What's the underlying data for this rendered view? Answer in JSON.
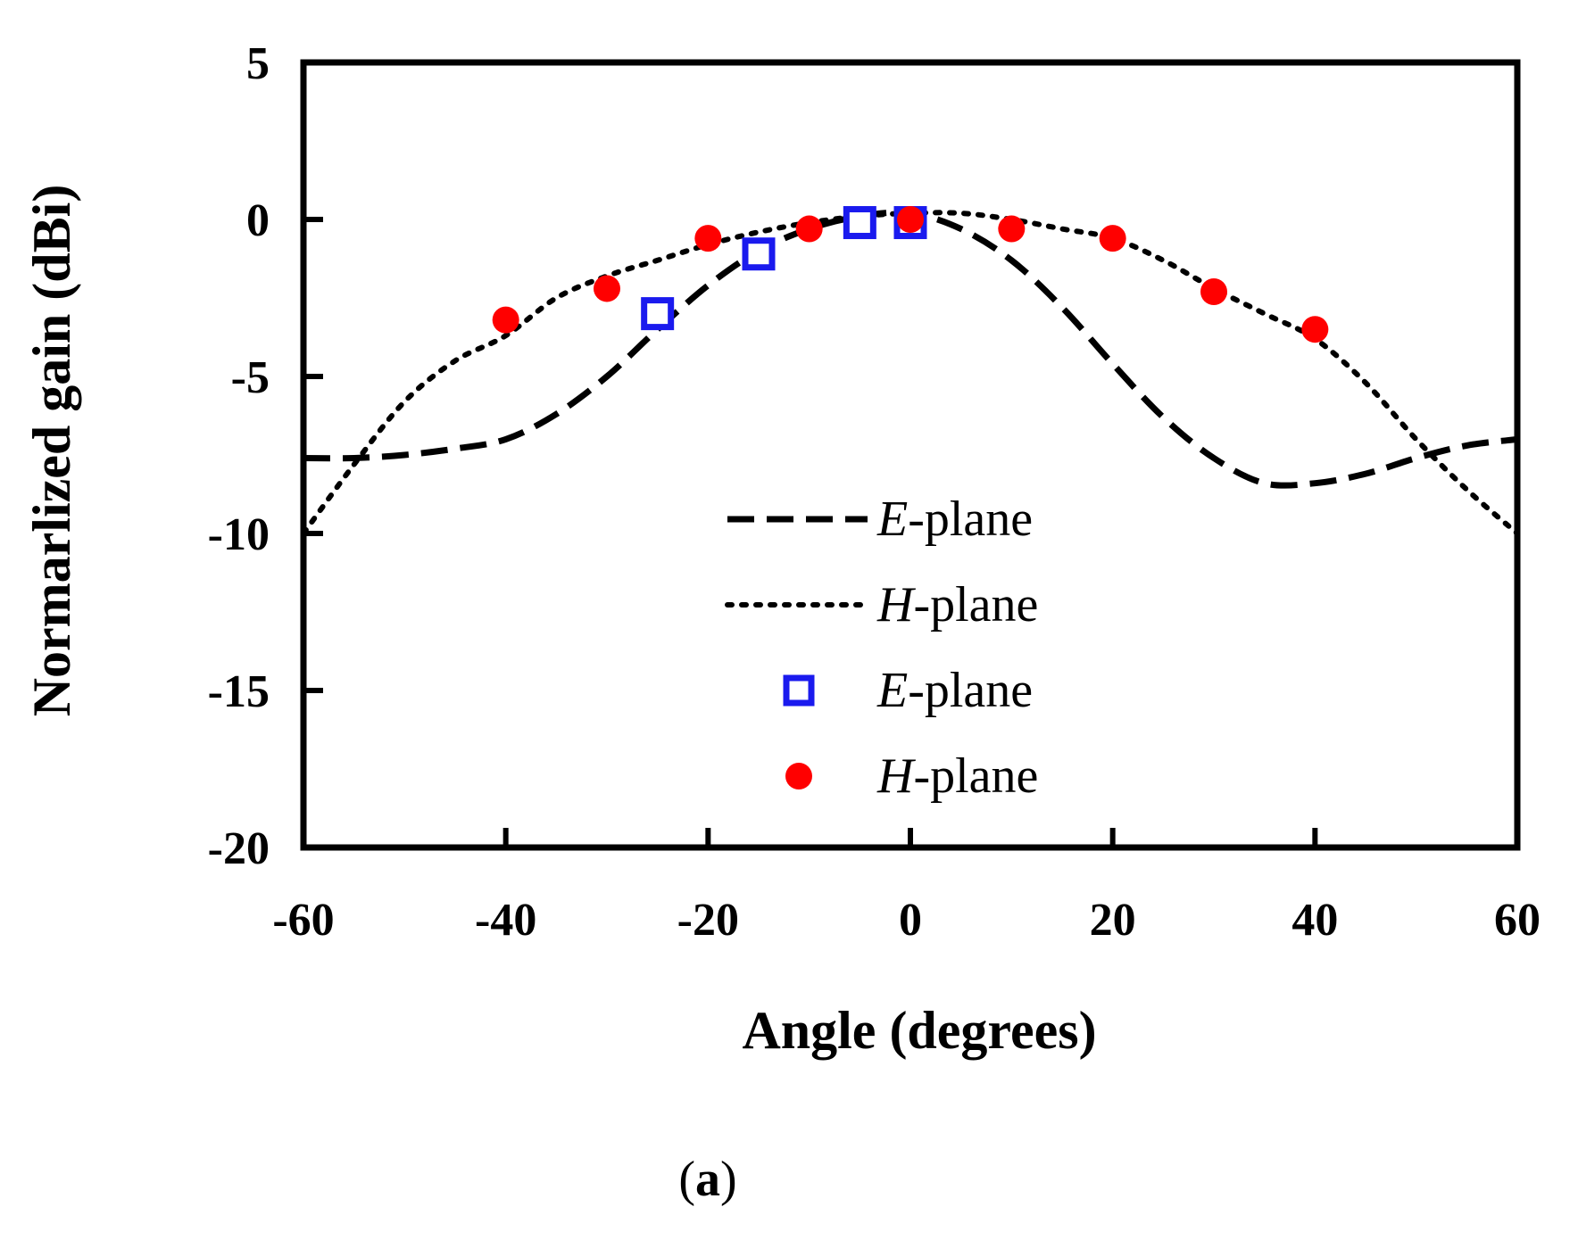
{
  "chart_data": {
    "type": "line",
    "title": "",
    "xlabel": "Angle (degrees)",
    "ylabel": "Normarlized gain (dBi)",
    "xlim": [
      -60,
      60
    ],
    "ylim": [
      -20,
      5
    ],
    "xticks": [
      -60,
      -40,
      -20,
      0,
      20,
      40,
      60
    ],
    "yticks": [
      5,
      0,
      -5,
      -10,
      -15,
      -20
    ],
    "grid": false,
    "legend_position": "center",
    "panel_label": {
      "open": "(",
      "letter": "a",
      "close": ")"
    },
    "series": [
      {
        "name": "E-plane",
        "name_italic": "E",
        "name_rest": "-plane",
        "kind": "simulated",
        "style": "dashed",
        "color": "#000000",
        "x": [
          -60,
          -55,
          -50,
          -45,
          -40,
          -35,
          -30,
          -25,
          -20,
          -15,
          -10,
          -5,
          0,
          5,
          10,
          15,
          20,
          25,
          30,
          35,
          40,
          45,
          50,
          55,
          60
        ],
        "y": [
          -7.6,
          -7.6,
          -7.5,
          -7.3,
          -7.0,
          -6.2,
          -5.0,
          -3.5,
          -2.1,
          -1.0,
          -0.3,
          0.1,
          0.2,
          -0.3,
          -1.3,
          -2.8,
          -4.6,
          -6.3,
          -7.6,
          -8.4,
          -8.4,
          -8.1,
          -7.6,
          -7.2,
          -7.0
        ]
      },
      {
        "name": "H-plane",
        "name_italic": "H",
        "name_rest": "-plane",
        "kind": "simulated",
        "style": "dotted",
        "color": "#000000",
        "x": [
          -60,
          -55,
          -50,
          -45,
          -40,
          -35,
          -30,
          -25,
          -20,
          -15,
          -10,
          -5,
          0,
          5,
          10,
          15,
          20,
          25,
          30,
          35,
          40,
          45,
          50,
          55,
          60
        ],
        "y": [
          -10.0,
          -7.8,
          -5.8,
          -4.5,
          -3.7,
          -2.5,
          -1.8,
          -1.3,
          -0.8,
          -0.4,
          -0.1,
          0.1,
          0.2,
          0.2,
          0.0,
          -0.3,
          -0.6,
          -1.3,
          -2.2,
          -3.0,
          -3.8,
          -5.2,
          -7.0,
          -8.6,
          -10.0
        ]
      },
      {
        "name": "E-plane",
        "name_italic": "E",
        "name_rest": "-plane",
        "kind": "measured",
        "marker": "square",
        "color": "#1a1aee",
        "x": [
          -25,
          -15,
          -5,
          0
        ],
        "y": [
          -3.0,
          -1.1,
          -0.1,
          -0.1
        ]
      },
      {
        "name": "H-plane",
        "name_italic": "H",
        "name_rest": "-plane",
        "kind": "measured",
        "marker": "circle",
        "color": "#ff0000",
        "x": [
          -40,
          -30,
          -20,
          -10,
          0,
          10,
          20,
          30,
          40
        ],
        "y": [
          -3.2,
          -2.2,
          -0.6,
          -0.3,
          0.0,
          -0.3,
          -0.6,
          -2.3,
          -3.5
        ]
      }
    ]
  }
}
